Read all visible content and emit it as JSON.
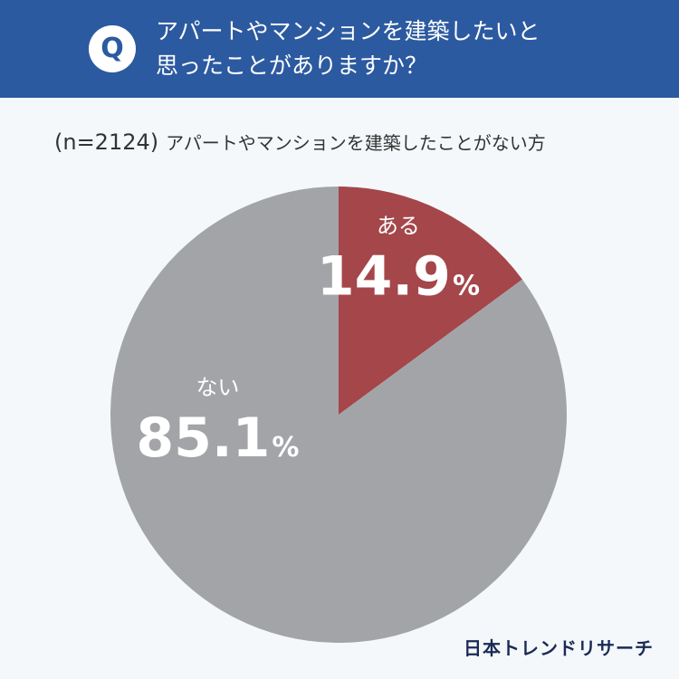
{
  "header": {
    "badge": "Q",
    "question_line1": "アパートやマンションを建築したいと",
    "question_line2": "思ったことがありますか？"
  },
  "subtitle": {
    "n_label": "(n=2124)",
    "group": "アパートやマンションを建築したことがない方"
  },
  "chart_data": {
    "type": "pie",
    "labels": [
      "ある",
      "ない"
    ],
    "values": [
      14.9,
      85.1
    ],
    "unit": "%",
    "colors": [
      "#a4464a",
      "#a3a4a8"
    ],
    "title": ""
  },
  "footer": {
    "logo": "日本トレンドリサーチ"
  }
}
